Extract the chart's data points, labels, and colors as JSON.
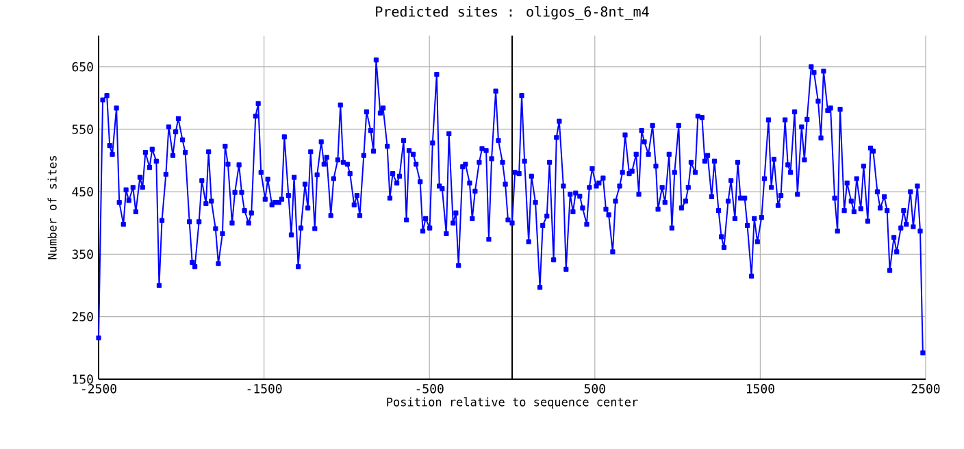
{
  "chart_data": {
    "type": "line",
    "title": "Predicted sites : oligos_6-8nt_m4",
    "xlabel": "Position relative to sequence center",
    "ylabel": "Number of sites",
    "xlim": [
      -2500,
      2500
    ],
    "ylim": [
      150,
      700
    ],
    "xticks": [
      -2500,
      -1500,
      -500,
      500,
      1500,
      2500
    ],
    "yticks": [
      150,
      250,
      350,
      450,
      550,
      650
    ],
    "grid": true,
    "marker": "square",
    "line_style": "solid",
    "ref_lines": [
      {
        "axis": "x",
        "value": 0,
        "color": "#000000"
      }
    ],
    "series": [
      {
        "color": "#0000ff",
        "x": [
          -2500,
          -2475,
          -2450,
          -2433,
          -2417,
          -2392,
          -2375,
          -2350,
          -2334,
          -2317,
          -2292,
          -2275,
          -2250,
          -2234,
          -2217,
          -2192,
          -2176,
          -2151,
          -2134,
          -2117,
          -2093,
          -2076,
          -2051,
          -2034,
          -2018,
          -1993,
          -1976,
          -1951,
          -1934,
          -1918,
          -1893,
          -1876,
          -1851,
          -1835,
          -1818,
          -1793,
          -1776,
          -1751,
          -1735,
          -1718,
          -1693,
          -1676,
          -1651,
          -1635,
          -1618,
          -1593,
          -1576,
          -1551,
          -1535,
          -1518,
          -1493,
          -1477,
          -1452,
          -1435,
          -1410,
          -1393,
          -1377,
          -1352,
          -1335,
          -1318,
          -1293,
          -1277,
          -1252,
          -1235,
          -1218,
          -1193,
          -1179,
          -1154,
          -1137,
          -1121,
          -1096,
          -1079,
          -1054,
          -1038,
          -1021,
          -996,
          -980,
          -955,
          -938,
          -921,
          -897,
          -880,
          -855,
          -838,
          -822,
          -797,
          -780,
          -755,
          -739,
          -722,
          -697,
          -681,
          -656,
          -639,
          -623,
          -598,
          -581,
          -556,
          -540,
          -523,
          -498,
          -481,
          -456,
          -440,
          -423,
          -398,
          -382,
          -357,
          -340,
          -324,
          -299,
          -282,
          -257,
          -241,
          -224,
          -199,
          -182,
          -157,
          -141,
          -124,
          -99,
          -83,
          -58,
          -41,
          -25,
          0,
          17,
          42,
          58,
          75,
          100,
          117,
          141,
          168,
          185,
          210,
          226,
          251,
          268,
          285,
          310,
          326,
          351,
          368,
          384,
          409,
          426,
          451,
          467,
          484,
          509,
          525,
          550,
          567,
          584,
          608,
          625,
          650,
          667,
          683,
          708,
          725,
          750,
          766,
          783,
          799,
          824,
          849,
          869,
          882,
          907,
          924,
          949,
          966,
          982,
          1007,
          1024,
          1049,
          1065,
          1082,
          1107,
          1123,
          1148,
          1165,
          1182,
          1206,
          1223,
          1248,
          1265,
          1281,
          1306,
          1323,
          1347,
          1364,
          1381,
          1406,
          1422,
          1447,
          1464,
          1483,
          1508,
          1525,
          1550,
          1567,
          1583,
          1608,
          1625,
          1650,
          1667,
          1683,
          1708,
          1725,
          1750,
          1767,
          1783,
          1808,
          1825,
          1850,
          1867,
          1883,
          1908,
          1925,
          1950,
          1967,
          1983,
          2008,
          2025,
          2050,
          2067,
          2083,
          2108,
          2125,
          2150,
          2167,
          2183,
          2208,
          2225,
          2250,
          2267,
          2283,
          2308,
          2325,
          2350,
          2367,
          2383,
          2408,
          2425,
          2450,
          2467,
          2483
        ],
        "values": [
          216,
          597,
          604,
          524,
          510,
          584,
          433,
          398,
          453,
          436,
          457,
          418,
          473,
          457,
          513,
          489,
          518,
          499,
          300,
          404,
          478,
          554,
          508,
          546,
          567,
          533,
          513,
          402,
          337,
          330,
          402,
          468,
          431,
          514,
          435,
          391,
          335,
          383,
          523,
          494,
          400,
          449,
          493,
          449,
          420,
          400,
          416,
          571,
          591,
          481,
          438,
          470,
          429,
          433,
          433,
          438,
          538,
          444,
          381,
          473,
          330,
          392,
          462,
          424,
          514,
          391,
          477,
          530,
          494,
          505,
          412,
          471,
          501,
          589,
          497,
          494,
          479,
          429,
          444,
          412,
          508,
          578,
          548,
          515,
          661,
          576,
          584,
          523,
          440,
          479,
          464,
          475,
          532,
          405,
          516,
          510,
          494,
          466,
          387,
          407,
          392,
          528,
          638,
          459,
          455,
          383,
          543,
          400,
          416,
          332,
          490,
          494,
          464,
          407,
          451,
          497,
          519,
          516,
          374,
          503,
          611,
          532,
          497,
          462,
          405,
          400,
          481,
          479,
          604,
          499,
          370,
          475,
          433,
          297,
          396,
          411,
          497,
          341,
          537,
          563,
          459,
          326,
          446,
          418,
          448,
          443,
          424,
          398,
          457,
          487,
          459,
          464,
          472,
          422,
          413,
          354,
          435,
          459,
          481,
          541,
          479,
          483,
          510,
          446,
          548,
          530,
          510,
          556,
          491,
          422,
          457,
          433,
          510,
          392,
          481,
          556,
          424,
          435,
          457,
          497,
          481,
          571,
          569,
          499,
          508,
          442,
          499,
          420,
          378,
          361,
          435,
          468,
          407,
          497,
          440,
          440,
          396,
          315,
          407,
          370,
          409,
          471,
          565,
          457,
          502,
          428,
          444,
          565,
          493,
          481,
          578,
          446,
          554,
          501,
          566,
          650,
          641,
          595,
          536,
          643,
          580,
          584,
          440,
          387,
          582,
          420,
          464,
          435,
          418,
          471,
          423,
          491,
          403,
          520,
          515,
          450,
          424,
          442,
          420,
          324,
          377,
          354,
          392,
          420,
          398,
          450,
          394,
          459,
          387,
          192
        ]
      }
    ]
  }
}
